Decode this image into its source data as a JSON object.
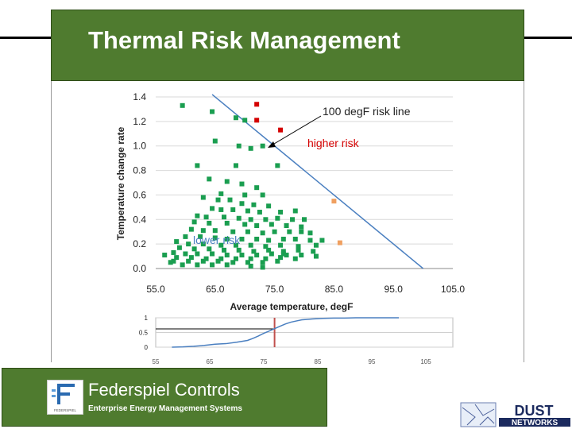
{
  "slide": {
    "title": "Thermal Risk Management"
  },
  "footer": {
    "company": "Federspiel Controls",
    "tagline": "Enterprise Energy Management Systems",
    "logo_letter": "F",
    "logo_small_text": "FEDERSPIEL CORPORATION",
    "partner_logo_top": "DUST",
    "partner_logo_bottom": "NETWORKS"
  },
  "colors": {
    "title_bar": "#4f7b2f",
    "low_risk_points": "#1a9e50",
    "high_risk_points": "#d40000",
    "borderline_points": "#f0a060",
    "risk_line": "#4a7fc0",
    "threshold_line": "#c0504d"
  },
  "chart_data": [
    {
      "type": "scatter",
      "xlabel": "Average temperature, degF",
      "ylabel": "Temperature change rate",
      "xlim": [
        55,
        105
      ],
      "ylim": [
        0,
        1.4
      ],
      "xticks": [
        "55.0",
        "65.0",
        "75.0",
        "85.0",
        "95.0",
        "105.0"
      ],
      "yticks": [
        "0.0",
        "0.2",
        "0.4",
        "0.6",
        "0.8",
        "1.0",
        "1.2",
        "1.4"
      ],
      "grid": "horizontal",
      "annotations": {
        "risk_line_label": "100 degF risk line",
        "higher_risk_label": "higher risk",
        "lower_risk_label": "lower risk"
      },
      "risk_line": {
        "x": [
          64.5,
          100
        ],
        "y": [
          1.42,
          0
        ]
      },
      "series": [
        {
          "role": "lower-risk",
          "points": [
            [
              59.5,
              1.33
            ],
            [
              64.5,
              1.28
            ],
            [
              68.5,
              1.23
            ],
            [
              70,
              1.21
            ],
            [
              65,
              1.04
            ],
            [
              69,
              1.0
            ],
            [
              71,
              0.98
            ],
            [
              73,
              1.0
            ],
            [
              62,
              0.84
            ],
            [
              68.5,
              0.84
            ],
            [
              75.5,
              0.84
            ],
            [
              64,
              0.73
            ],
            [
              67,
              0.71
            ],
            [
              69.5,
              0.69
            ],
            [
              72,
              0.66
            ],
            [
              66,
              0.61
            ],
            [
              70,
              0.6
            ],
            [
              73,
              0.6
            ],
            [
              63,
              0.58
            ],
            [
              65.5,
              0.56
            ],
            [
              67.5,
              0.56
            ],
            [
              69.5,
              0.53
            ],
            [
              71.5,
              0.52
            ],
            [
              74,
              0.51
            ],
            [
              64.5,
              0.49
            ],
            [
              66,
              0.48
            ],
            [
              68,
              0.48
            ],
            [
              70.5,
              0.47
            ],
            [
              72.5,
              0.46
            ],
            [
              76,
              0.46
            ],
            [
              78.5,
              0.47
            ],
            [
              62,
              0.43
            ],
            [
              63.5,
              0.42
            ],
            [
              66.5,
              0.42
            ],
            [
              69,
              0.41
            ],
            [
              71,
              0.4
            ],
            [
              73.5,
              0.4
            ],
            [
              75.5,
              0.41
            ],
            [
              78,
              0.4
            ],
            [
              80,
              0.4
            ],
            [
              61.5,
              0.38
            ],
            [
              64,
              0.37
            ],
            [
              67,
              0.37
            ],
            [
              70,
              0.36
            ],
            [
              72,
              0.35
            ],
            [
              74.5,
              0.36
            ],
            [
              77,
              0.35
            ],
            [
              79.5,
              0.34
            ],
            [
              61,
              0.32
            ],
            [
              63,
              0.31
            ],
            [
              65,
              0.31
            ],
            [
              68,
              0.3
            ],
            [
              70.5,
              0.3
            ],
            [
              73,
              0.29
            ],
            [
              75,
              0.3
            ],
            [
              77.5,
              0.3
            ],
            [
              79.5,
              0.3
            ],
            [
              81,
              0.29
            ],
            [
              60,
              0.26
            ],
            [
              62.5,
              0.26
            ],
            [
              65,
              0.25
            ],
            [
              67,
              0.24
            ],
            [
              69.5,
              0.24
            ],
            [
              72,
              0.24
            ],
            [
              74,
              0.23
            ],
            [
              76.5,
              0.24
            ],
            [
              78.5,
              0.24
            ],
            [
              81,
              0.23
            ],
            [
              83,
              0.23
            ],
            [
              58.5,
              0.22
            ],
            [
              60.5,
              0.2
            ],
            [
              63,
              0.2
            ],
            [
              66,
              0.19
            ],
            [
              68.5,
              0.19
            ],
            [
              71,
              0.19
            ],
            [
              73.5,
              0.18
            ],
            [
              76,
              0.19
            ],
            [
              79,
              0.18
            ],
            [
              82,
              0.19
            ],
            [
              59,
              0.17
            ],
            [
              61.5,
              0.16
            ],
            [
              64,
              0.16
            ],
            [
              66.5,
              0.15
            ],
            [
              69,
              0.15
            ],
            [
              71.5,
              0.14
            ],
            [
              74,
              0.15
            ],
            [
              76.5,
              0.14
            ],
            [
              79,
              0.15
            ],
            [
              81.5,
              0.14
            ],
            [
              58,
              0.13
            ],
            [
              60,
              0.12
            ],
            [
              62,
              0.12
            ],
            [
              64.5,
              0.12
            ],
            [
              67,
              0.11
            ],
            [
              69.5,
              0.11
            ],
            [
              72,
              0.11
            ],
            [
              74.5,
              0.12
            ],
            [
              77,
              0.11
            ],
            [
              79.5,
              0.11
            ],
            [
              82,
              0.1
            ],
            [
              58.5,
              0.09
            ],
            [
              61,
              0.09
            ],
            [
              63.5,
              0.08
            ],
            [
              66,
              0.08
            ],
            [
              68.5,
              0.08
            ],
            [
              71,
              0.08
            ],
            [
              73.5,
              0.08
            ],
            [
              76,
              0.09
            ],
            [
              78.5,
              0.08
            ],
            [
              56.5,
              0.11
            ],
            [
              58,
              0.06
            ],
            [
              60.5,
              0.06
            ],
            [
              63,
              0.06
            ],
            [
              65.5,
              0.06
            ],
            [
              68,
              0.05
            ],
            [
              70.5,
              0.05
            ],
            [
              73,
              0.05
            ],
            [
              75.5,
              0.06
            ],
            [
              59.5,
              0.03
            ],
            [
              62,
              0.03
            ],
            [
              64.5,
              0.03
            ],
            [
              67,
              0.03
            ],
            [
              71,
              0.02
            ],
            [
              73,
              0.01
            ],
            [
              57.5,
              0.05
            ],
            [
              76.5,
              0.12
            ]
          ]
        },
        {
          "role": "higher-risk",
          "points": [
            [
              72,
              1.34
            ],
            [
              72,
              1.21
            ],
            [
              76,
              1.13
            ]
          ]
        },
        {
          "role": "borderline",
          "points": [
            [
              85,
              0.55
            ],
            [
              86,
              0.21
            ]
          ]
        }
      ]
    },
    {
      "type": "line",
      "xlim": [
        55,
        110
      ],
      "ylim": [
        0,
        1
      ],
      "xticks": [
        "55",
        "65",
        "75",
        "85",
        "95",
        "105"
      ],
      "yticks": [
        "0",
        "0.5",
        "1"
      ],
      "grid": "horizontal",
      "x": [
        58,
        60,
        62,
        64,
        66,
        68,
        70,
        72,
        73,
        74,
        75,
        76,
        77,
        78,
        79,
        80,
        81,
        82,
        84,
        86,
        88,
        90,
        92,
        95,
        98,
        100
      ],
      "y": [
        0.0,
        0.01,
        0.03,
        0.06,
        0.1,
        0.12,
        0.17,
        0.23,
        0.3,
        0.38,
        0.47,
        0.55,
        0.63,
        0.71,
        0.79,
        0.85,
        0.89,
        0.93,
        0.96,
        0.98,
        0.99,
        0.99,
        1.0,
        1.0,
        1.0,
        1.0
      ],
      "threshold": {
        "x": 77,
        "y": 0.62
      }
    }
  ]
}
